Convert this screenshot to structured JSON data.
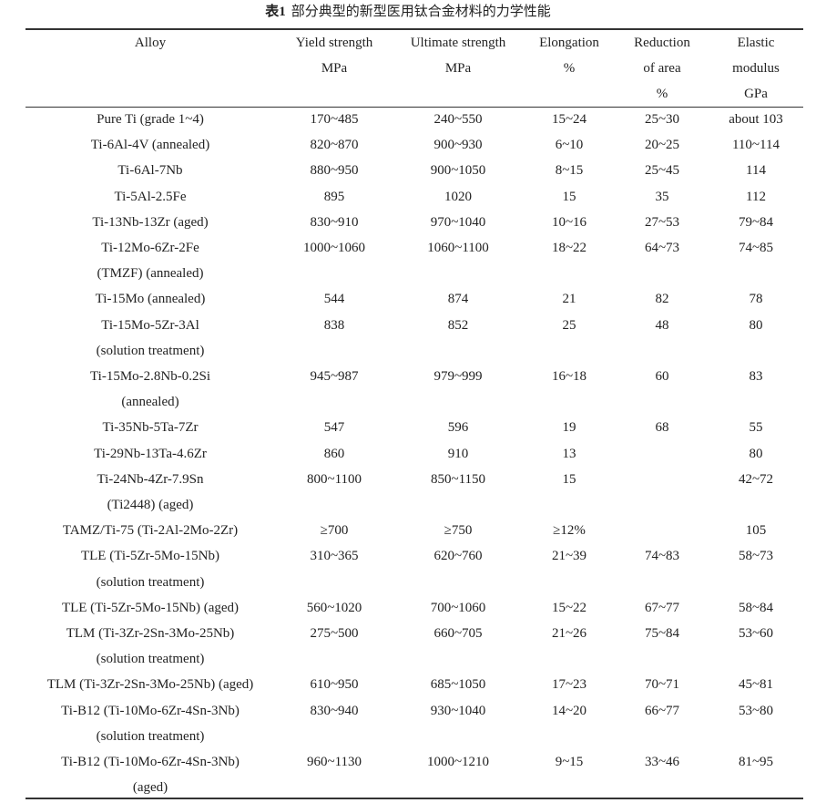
{
  "caption": {
    "label": "表1",
    "title": "部分典型的新型医用钛合金材料的力学性能"
  },
  "headers": [
    [
      "Alloy"
    ],
    [
      "Yield strength",
      "MPa"
    ],
    [
      "Ultimate strength",
      "MPa"
    ],
    [
      "Elongation",
      "%"
    ],
    [
      "Reduction",
      "of area",
      "%"
    ],
    [
      "Elastic",
      "modulus",
      "GPa"
    ]
  ],
  "rows": [
    {
      "alloy": [
        "Pure Ti (grade 1~4)"
      ],
      "yield": "170~485",
      "ultimate": "240~550",
      "elongation": "15~24",
      "reduction": "25~30",
      "modulus": "about 103"
    },
    {
      "alloy": [
        "Ti-6Al-4V (annealed)"
      ],
      "yield": "820~870",
      "ultimate": "900~930",
      "elongation": "6~10",
      "reduction": "20~25",
      "modulus": "110~114"
    },
    {
      "alloy": [
        "Ti-6Al-7Nb"
      ],
      "yield": "880~950",
      "ultimate": "900~1050",
      "elongation": "8~15",
      "reduction": "25~45",
      "modulus": "114"
    },
    {
      "alloy": [
        "Ti-5Al-2.5Fe"
      ],
      "yield": "895",
      "ultimate": "1020",
      "elongation": "15",
      "reduction": "35",
      "modulus": "112"
    },
    {
      "alloy": [
        "Ti-13Nb-13Zr (aged)"
      ],
      "yield": "830~910",
      "ultimate": "970~1040",
      "elongation": "10~16",
      "reduction": "27~53",
      "modulus": "79~84"
    },
    {
      "alloy": [
        "Ti-12Mo-6Zr-2Fe",
        "(TMZF) (annealed)"
      ],
      "yield": "1000~1060",
      "ultimate": "1060~1100",
      "elongation": "18~22",
      "reduction": "64~73",
      "modulus": "74~85"
    },
    {
      "alloy": [
        "Ti-15Mo (annealed)"
      ],
      "yield": "544",
      "ultimate": "874",
      "elongation": "21",
      "reduction": "82",
      "modulus": "78"
    },
    {
      "alloy": [
        "Ti-15Mo-5Zr-3Al",
        "(solution treatment)"
      ],
      "yield": "838",
      "ultimate": "852",
      "elongation": "25",
      "reduction": "48",
      "modulus": "80"
    },
    {
      "alloy": [
        "Ti-15Mo-2.8Nb-0.2Si",
        "(annealed)"
      ],
      "yield": "945~987",
      "ultimate": "979~999",
      "elongation": "16~18",
      "reduction": "60",
      "modulus": "83"
    },
    {
      "alloy": [
        "Ti-35Nb-5Ta-7Zr"
      ],
      "yield": "547",
      "ultimate": "596",
      "elongation": "19",
      "reduction": "68",
      "modulus": "55"
    },
    {
      "alloy": [
        "Ti-29Nb-13Ta-4.6Zr"
      ],
      "yield": "860",
      "ultimate": "910",
      "elongation": "13",
      "reduction": "",
      "modulus": "80"
    },
    {
      "alloy": [
        "Ti-24Nb-4Zr-7.9Sn",
        "(Ti2448) (aged)"
      ],
      "yield": "800~1100",
      "ultimate": "850~1150",
      "elongation": "15",
      "reduction": "",
      "modulus": "42~72"
    },
    {
      "alloy": [
        "TAMZ/Ti-75 (Ti-2Al-2Mo-2Zr)"
      ],
      "yield": "≥700",
      "ultimate": "≥750",
      "elongation": "≥12%",
      "reduction": "",
      "modulus": "105"
    },
    {
      "alloy": [
        "TLE (Ti-5Zr-5Mo-15Nb)",
        "(solution treatment)"
      ],
      "yield": "310~365",
      "ultimate": "620~760",
      "elongation": "21~39",
      "reduction": "74~83",
      "modulus": "58~73"
    },
    {
      "alloy": [
        "TLE (Ti-5Zr-5Mo-15Nb) (aged)"
      ],
      "yield": "560~1020",
      "ultimate": "700~1060",
      "elongation": "15~22",
      "reduction": "67~77",
      "modulus": "58~84"
    },
    {
      "alloy": [
        "TLM (Ti-3Zr-2Sn-3Mo-25Nb)",
        "(solution treatment)"
      ],
      "yield": "275~500",
      "ultimate": "660~705",
      "elongation": "21~26",
      "reduction": "75~84",
      "modulus": "53~60"
    },
    {
      "alloy": [
        "TLM (Ti-3Zr-2Sn-3Mo-25Nb) (aged)"
      ],
      "yield": "610~950",
      "ultimate": "685~1050",
      "elongation": "17~23",
      "reduction": "70~71",
      "modulus": "45~81"
    },
    {
      "alloy": [
        "Ti-B12 (Ti-10Mo-6Zr-4Sn-3Nb)",
        "(solution treatment)"
      ],
      "yield": "830~940",
      "ultimate": "930~1040",
      "elongation": "14~20",
      "reduction": "66~77",
      "modulus": "53~80"
    },
    {
      "alloy": [
        "Ti-B12 (Ti-10Mo-6Zr-4Sn-3Nb)",
        "(aged)"
      ],
      "yield": "960~1130",
      "ultimate": "1000~1210",
      "elongation": "9~15",
      "reduction": "33~46",
      "modulus": "81~95"
    }
  ]
}
